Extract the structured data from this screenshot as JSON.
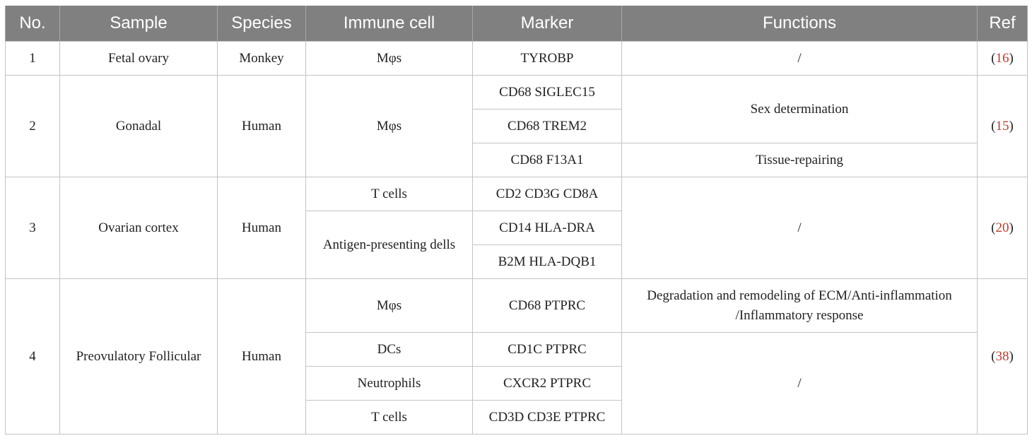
{
  "headers": {
    "no": "No.",
    "sample": "Sample",
    "species": "Species",
    "immune_cell": "Immune cell",
    "marker": "Marker",
    "functions": "Functions",
    "ref": "Ref"
  },
  "groups": [
    {
      "no": "1",
      "sample": "Fetal ovary",
      "species": "Monkey",
      "ref": "16",
      "cells": [
        {
          "name": "Mφs"
        }
      ],
      "markers": [
        "TYROBP"
      ],
      "functions": [
        "/"
      ]
    },
    {
      "no": "2",
      "sample": "Gonadal",
      "species": "Human",
      "ref": "15",
      "cells": [
        {
          "name": "Mφs"
        }
      ],
      "markers": [
        "CD68 SIGLEC15",
        "CD68 TREM2",
        "CD68 F13A1"
      ],
      "functions": [
        "Sex determination",
        "Tissue-repairing"
      ]
    },
    {
      "no": "3",
      "sample": "Ovarian cortex",
      "species": "Human",
      "ref": "20",
      "cells": [
        {
          "name": "T cells"
        },
        {
          "name": "Antigen-presenting dells"
        }
      ],
      "markers": [
        "CD2 CD3G CD8A",
        "CD14 HLA-DRA",
        "B2M HLA-DQB1"
      ],
      "functions": [
        "/"
      ]
    },
    {
      "no": "4",
      "sample": "Preovulatory Follicular",
      "species": "Human",
      "ref": "38",
      "cells": [
        {
          "name": "Mφs"
        },
        {
          "name": "DCs"
        },
        {
          "name": "Neutrophils"
        },
        {
          "name": "T cells"
        }
      ],
      "markers": [
        "CD68 PTPRC",
        "CD1C PTPRC",
        "CXCR2 PTPRC",
        "CD3D CD3E PTPRC"
      ],
      "functions": [
        "Degradation and remodeling of ECM/Anti-inflammation",
        "/Inflammatory response",
        "/"
      ]
    }
  ]
}
